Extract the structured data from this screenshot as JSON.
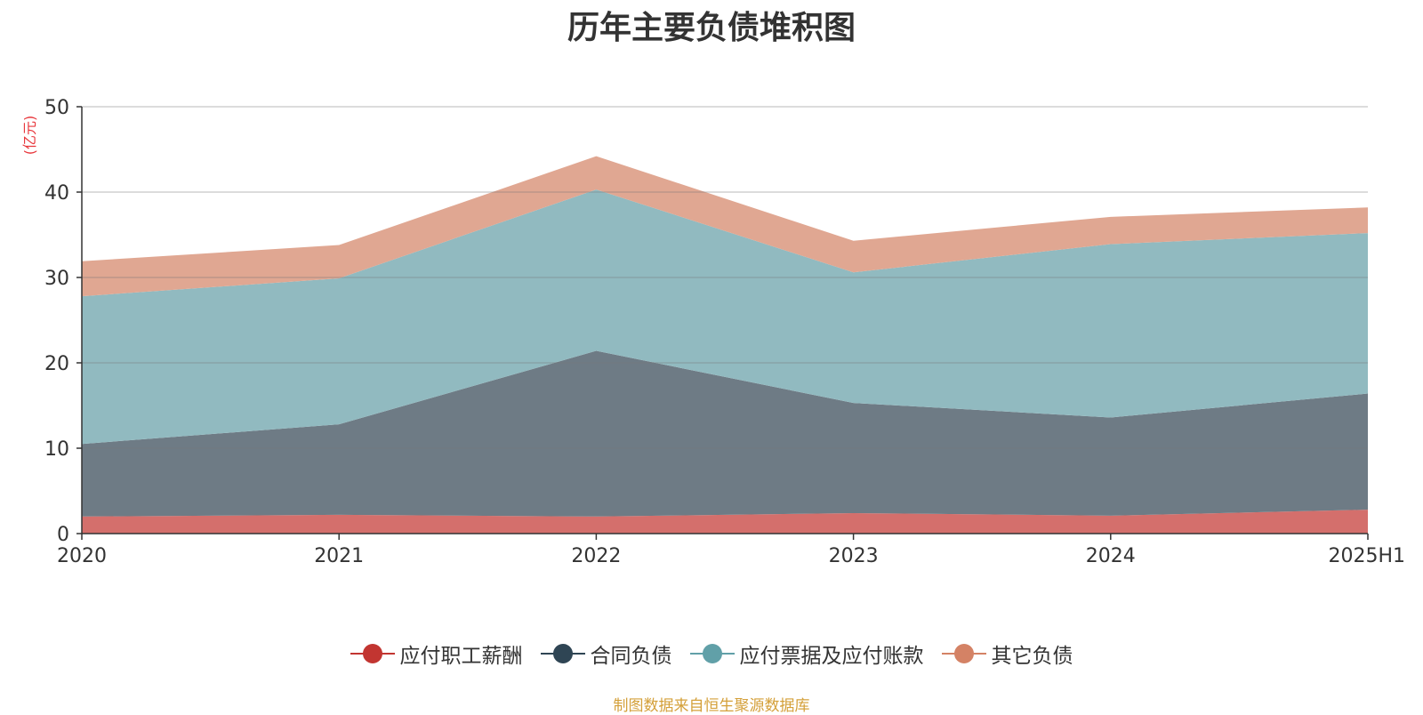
{
  "title": "历年主要负债堆积图",
  "unit_label": "(亿元)",
  "source_text": "制图数据来自恒生聚源数据库",
  "chart_data": {
    "type": "area",
    "stacked": true,
    "title": "历年主要负债堆积图",
    "ylabel": "(亿元)",
    "xlabel": "",
    "x": [
      "2020",
      "2021",
      "2022",
      "2023",
      "2024",
      "2025H1"
    ],
    "ylim": [
      0,
      50
    ],
    "yticks": [
      0,
      10,
      20,
      30,
      40,
      50
    ],
    "grid": true,
    "legend_position": "bottom",
    "series": [
      {
        "name": "应付职工薪酬",
        "values": [
          2.0,
          2.2,
          2.0,
          2.4,
          2.1,
          2.8
        ],
        "color": "#c23531",
        "fill": "#d46f6c"
      },
      {
        "name": "合同负债",
        "values": [
          8.5,
          10.6,
          19.4,
          12.9,
          11.5,
          13.6
        ],
        "color": "#2f4554",
        "fill": "#6e7b85"
      },
      {
        "name": "应付票据及应付账款",
        "values": [
          17.3,
          17.1,
          18.9,
          15.3,
          20.3,
          18.8
        ],
        "color": "#61a0a8",
        "fill": "#91bac0"
      },
      {
        "name": "其它负债",
        "values": [
          4.1,
          3.9,
          3.9,
          3.7,
          3.2,
          3.0
        ],
        "color": "#d48265",
        "fill": "#e0a792"
      }
    ]
  }
}
